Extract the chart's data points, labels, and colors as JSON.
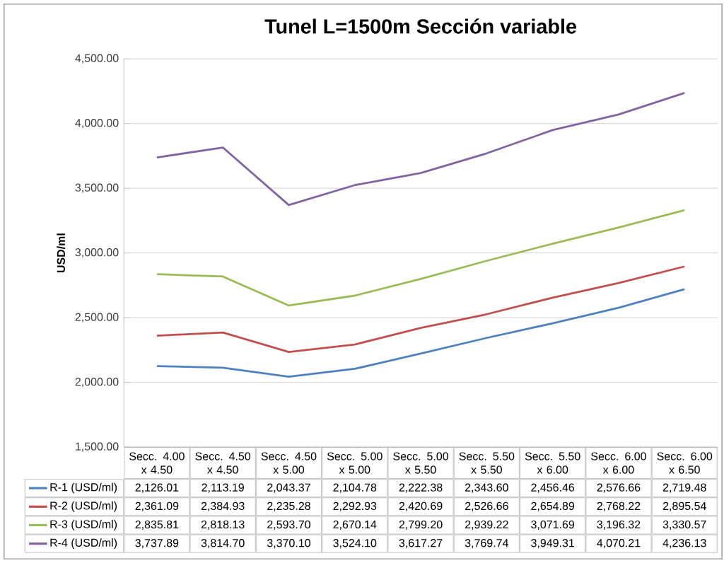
{
  "chart_data": {
    "type": "line",
    "title": "Tunel L=1500m Sección variable",
    "ylabel": "USD/ml",
    "categories": [
      "Secc. 4.00 x 4.50",
      "Secc. 4.50 x 4.50",
      "Secc. 4.50 x 5.00",
      "Secc. 5.00 x 5.00",
      "Secc. 5.00 x 5.50",
      "Secc. 5.50 x 5.50",
      "Secc. 5.50 x 6.00",
      "Secc. 6.00 x 6.00",
      "Secc. 6.00 x 6.50"
    ],
    "series": [
      {
        "name": "R-1 (USD/ml)",
        "color": "#4f81bd",
        "values": [
          2126.01,
          2113.19,
          2043.37,
          2104.78,
          2222.38,
          2343.6,
          2456.46,
          2576.66,
          2719.48
        ],
        "value_labels": [
          "2,126.01",
          "2,113.19",
          "2,043.37",
          "2,104.78",
          "2,222.38",
          "2,343.60",
          "2,456.46",
          "2,576.66",
          "2,719.48"
        ]
      },
      {
        "name": "R-2 (USD/ml)",
        "color": "#c0504d",
        "values": [
          2361.09,
          2384.93,
          2235.28,
          2292.93,
          2420.69,
          2526.66,
          2654.89,
          2768.22,
          2895.54
        ],
        "value_labels": [
          "2,361.09",
          "2,384.93",
          "2,235.28",
          "2,292.93",
          "2,420.69",
          "2,526.66",
          "2,654.89",
          "2,768.22",
          "2,895.54"
        ]
      },
      {
        "name": "R-3 (USD/ml)",
        "color": "#9bbb59",
        "values": [
          2835.81,
          2818.13,
          2593.7,
          2670.14,
          2799.2,
          2939.22,
          3071.69,
          3196.32,
          3330.57
        ],
        "value_labels": [
          "2,835.81",
          "2,818.13",
          "2,593.70",
          "2,670.14",
          "2,799.20",
          "2,939.22",
          "3,071.69",
          "3,196.32",
          "3,330.57"
        ]
      },
      {
        "name": "R-4 (USD/ml)",
        "color": "#8064a2",
        "values": [
          3737.89,
          3814.7,
          3370.1,
          3524.1,
          3617.27,
          3769.74,
          3949.31,
          4070.21,
          4236.13
        ],
        "value_labels": [
          "3,737.89",
          "3,814.70",
          "3,370.10",
          "3,524.10",
          "3,617.27",
          "3,769.74",
          "3,949.31",
          "4,070.21",
          "4,236.13"
        ]
      }
    ],
    "ylim": [
      1500,
      4500
    ],
    "yticks": [
      {
        "value": 1500,
        "label": "1,500.00"
      },
      {
        "value": 2000,
        "label": "2,000.00"
      },
      {
        "value": 2500,
        "label": "2,500.00"
      },
      {
        "value": 3000,
        "label": "3,000.00"
      },
      {
        "value": 3500,
        "label": "3,500.00"
      },
      {
        "value": 4000,
        "label": "4,000.00"
      },
      {
        "value": 4500,
        "label": "4,500.00"
      }
    ],
    "grid": "y",
    "legend": "bottom",
    "marker": "none",
    "line_style": "solid"
  }
}
